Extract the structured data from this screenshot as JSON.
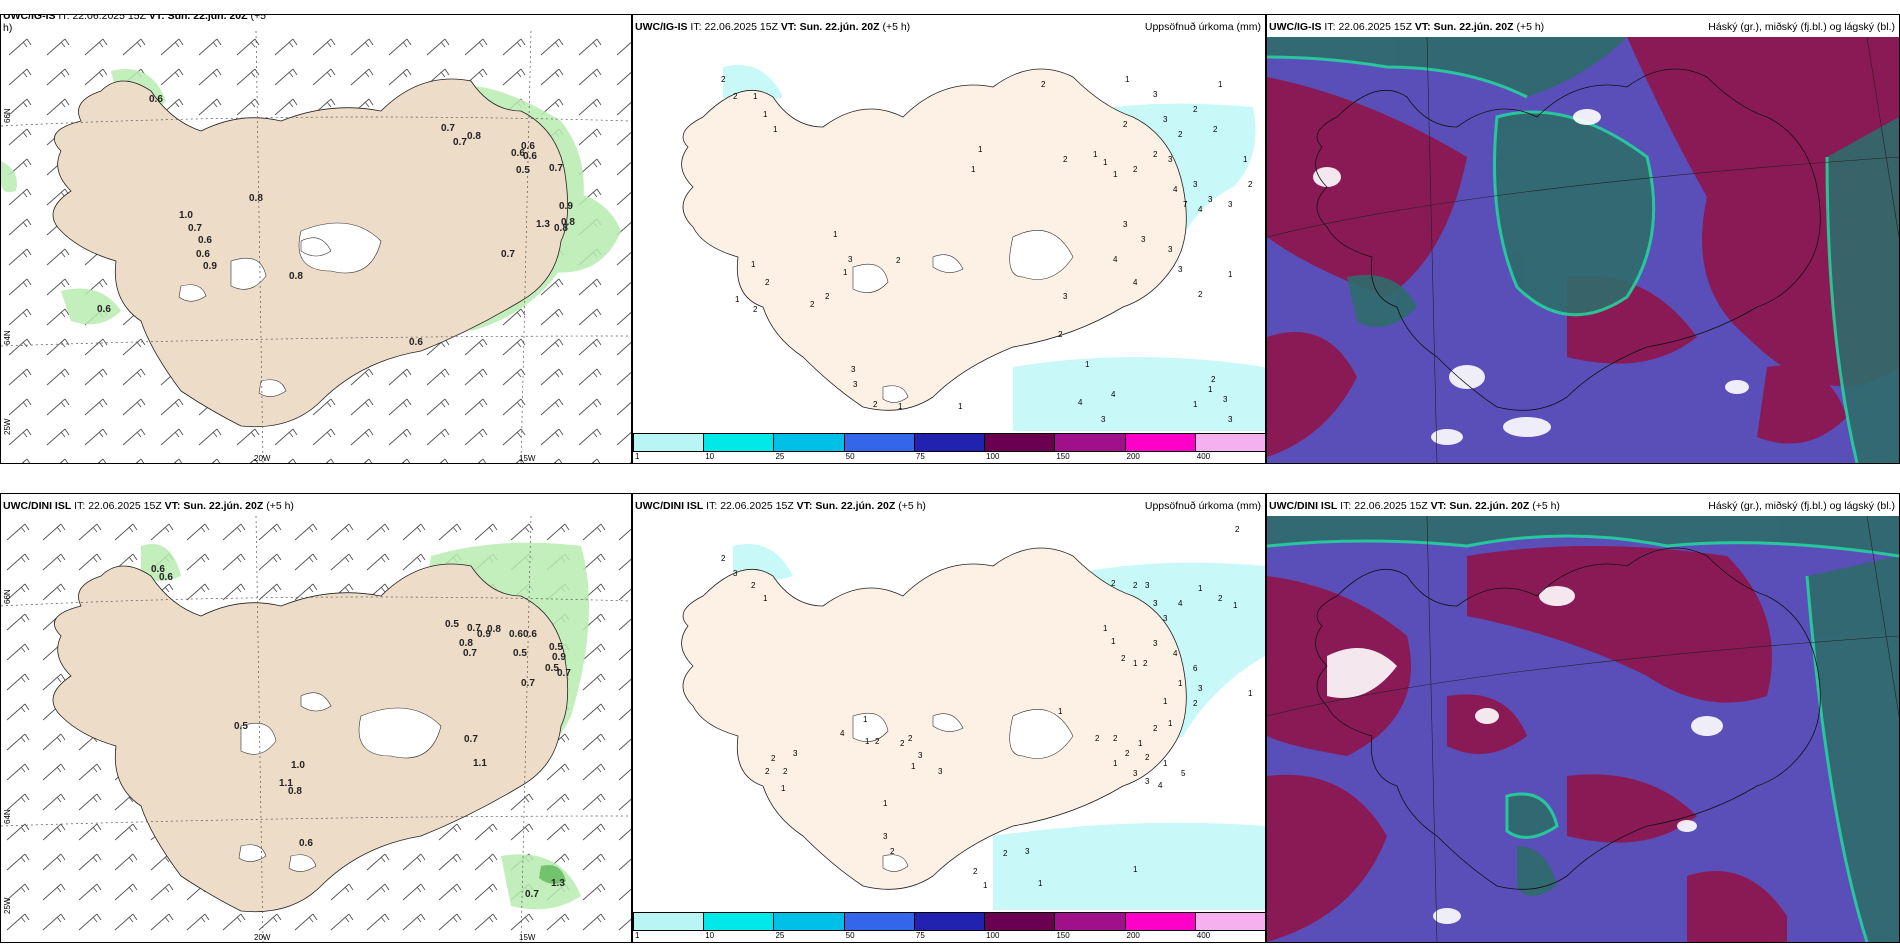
{
  "panels": {
    "tl": {
      "model": "UWC/IG-IS",
      "it_label": "IT:",
      "it": "22.06.2025 15Z",
      "vt_label": "VT:",
      "vt": "Sun. 22.jún. 20Z",
      "offset": "(+5",
      "offset2": "h)",
      "right": ""
    },
    "tm": {
      "model": "UWC/IG-IS",
      "it_label": "IT:",
      "it": "22.06.2025 15Z",
      "vt_label": "VT:",
      "vt": "Sun. 22.jún. 20Z",
      "offset": "(+5 h)",
      "right": "Uppsöfnuð úrkoma (mm)"
    },
    "tr": {
      "model": "UWC/IG-IS",
      "it_label": "IT:",
      "it": "22.06.2025 15Z",
      "vt_label": "VT:",
      "vt": "Sun. 22.jún. 20Z",
      "offset": "(+5 h)",
      "right": "Háský (gr.), miðský (fj.bl.) og lágský (bl.)"
    },
    "bl": {
      "model": "UWC/DINI ISL",
      "it_label": "IT:",
      "it": "22.06.2025 15Z",
      "vt_label": "VT:",
      "vt": "Sun. 22.jún. 20Z",
      "offset": "(+5 h)",
      "right": ""
    },
    "bm": {
      "model": "UWC/DINI ISL",
      "it_label": "IT:",
      "it": "22.06.2025 15Z",
      "vt_label": "VT:",
      "vt": "Sun. 22.jún. 20Z",
      "offset": "(+5 h)",
      "right": "Uppsöfnuð úrkoma (mm)"
    },
    "br": {
      "model": "UWC/DINI ISL",
      "it_label": "IT:",
      "it": "22.06.2025 15Z",
      "vt_label": "VT:",
      "vt": "Sun. 22.jún. 20Z",
      "offset": "(+5 h)",
      "right": "Háský (gr.), miðský (fj.bl.) og lágský (bl.)"
    }
  },
  "grid": {
    "lon_20": "20W",
    "lon_15": "15W",
    "lat_66": "66N",
    "lat_64": "64N",
    "lon_25": "25W"
  },
  "colorbar": {
    "colors": [
      "#b8f5f5",
      "#00e8e8",
      "#00c0e8",
      "#3366e8",
      "#2222b0",
      "#6a0050",
      "#a0108a",
      "#ff00c8",
      "#f5b0f0"
    ],
    "labels": [
      "1",
      "10",
      "25",
      "50",
      "75",
      "100",
      "150",
      "200",
      "400"
    ]
  },
  "labels_tl": [
    "0.6",
    "0.7",
    "0.7",
    "0.8",
    "0.6",
    "0.6",
    "0.6",
    "0.5",
    "0.7",
    "0.9",
    "0.8",
    "0.8",
    "0.8",
    "1.0",
    "0.7",
    "0.6",
    "0.6",
    "0.9",
    "0.8",
    "0.7",
    "1.3",
    "0.6",
    "0.6"
  ],
  "labels_bl": [
    "0.6",
    "0.6",
    "0.5",
    "0.7",
    "0.9",
    "0.8",
    "0.6",
    "0.6",
    "0.8",
    "0.7",
    "0.5",
    "0.5",
    "0.9",
    "0.7",
    "0.5",
    "0.7",
    "0.7",
    "1.1",
    "1.0",
    "1.1",
    "0.8",
    "0.5",
    "0.6",
    "1.3",
    "0.7"
  ],
  "precip_tm": [
    "2",
    "2",
    "1",
    "1",
    "1",
    "2",
    "1",
    "2",
    "1",
    "1",
    "3",
    "3",
    "2",
    "2",
    "2",
    "1",
    "1",
    "2",
    "1",
    "1",
    "2",
    "2",
    "3",
    "4",
    "7",
    "3",
    "4",
    "3",
    "3",
    "3",
    "3",
    "4",
    "4",
    "3",
    "2",
    "1",
    "3",
    "3",
    "2",
    "1",
    "1",
    "2",
    "1",
    "1",
    "2",
    "2",
    "2",
    "1",
    "1",
    "3",
    "2",
    "2",
    "3",
    "3",
    "1",
    "4",
    "3",
    "4",
    "1",
    "1",
    "3",
    "2",
    "3",
    "1",
    "2"
  ],
  "precip_bm": [
    "2",
    "2",
    "3",
    "2",
    "1",
    "2",
    "1",
    "1",
    "2",
    "3",
    "3",
    "3",
    "4",
    "1",
    "2",
    "1",
    "1",
    "2",
    "1",
    "2",
    "3",
    "4",
    "6",
    "3",
    "1",
    "2",
    "1",
    "1",
    "2",
    "1",
    "2",
    "1",
    "1",
    "2",
    "2",
    "1",
    "2",
    "3",
    "3",
    "4",
    "5",
    "3",
    "2",
    "2",
    "1",
    "2",
    "1",
    "1",
    "2",
    "2",
    "2",
    "4",
    "3",
    "3",
    "1",
    "1",
    "3",
    "2",
    "2",
    "3",
    "1",
    "2",
    "1",
    "1"
  ]
}
